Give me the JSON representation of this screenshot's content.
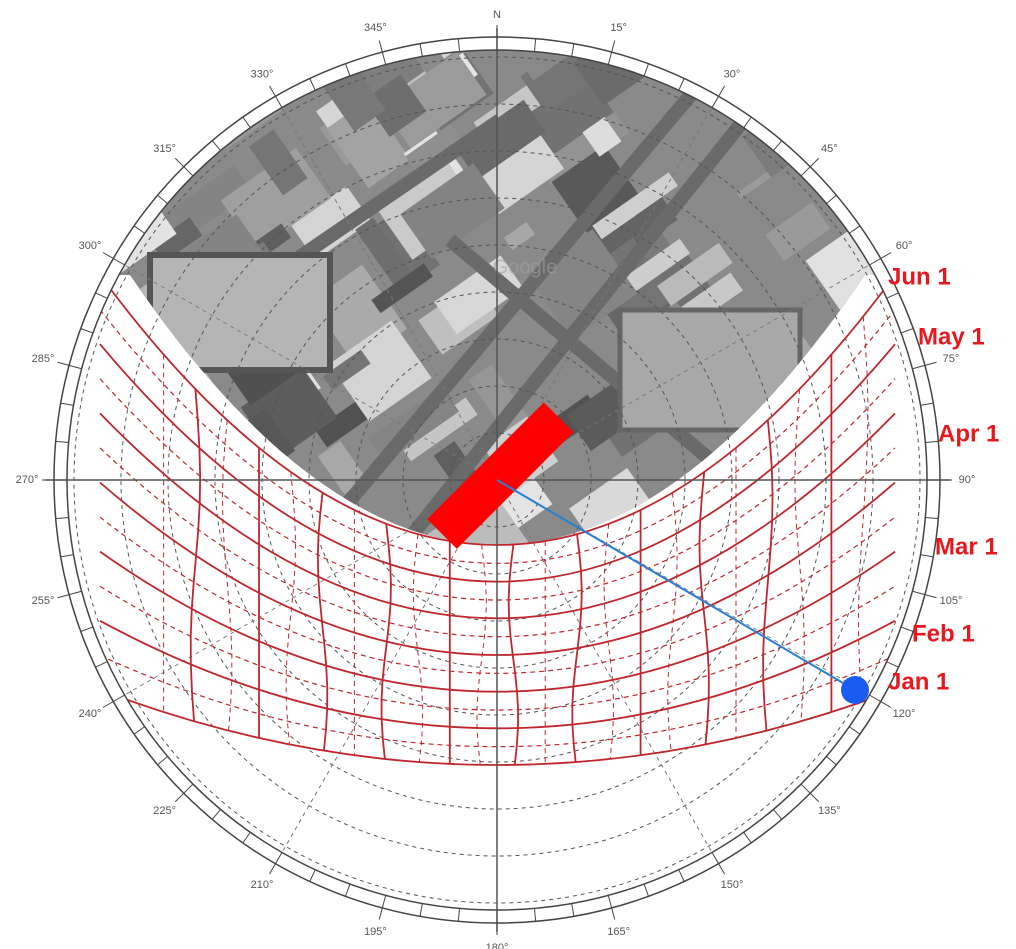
{
  "compass": {
    "north": "N",
    "labels": [
      "15°",
      "30°",
      "45°",
      "60°",
      "75°",
      "90°",
      "105°",
      "120°",
      "135°",
      "150°",
      "165°",
      "180°",
      "195°",
      "210°",
      "225°",
      "240°",
      "255°",
      "270°",
      "285°",
      "300°",
      "315°",
      "330°",
      "345°"
    ]
  },
  "months": [
    "Jun 1",
    "May 1",
    "Apr 1",
    "Mar 1",
    "Feb 1",
    "Jan 1"
  ],
  "watermark": "Google"
}
